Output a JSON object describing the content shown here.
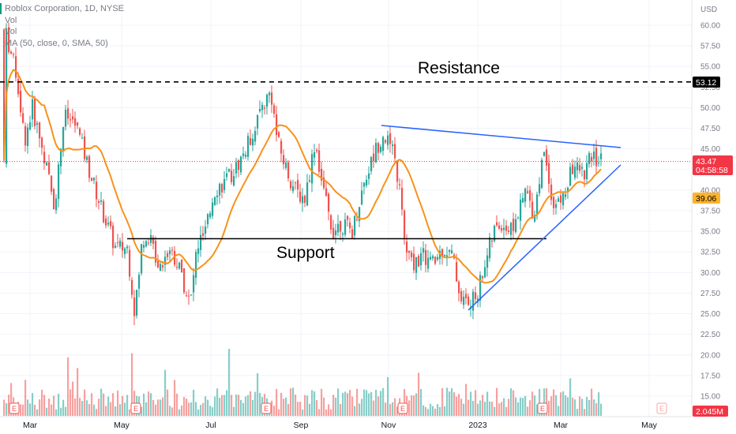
{
  "legend": {
    "title": "Roblox Corporation, 1D, NYSE",
    "vol1": "Vol",
    "vol2": "Vol",
    "ma": "MA (50, close, 0, SMA, 50)"
  },
  "colors": {
    "up": "#26a69a",
    "down": "#ef5350",
    "ma": "#f7931a",
    "trendline": "#2962ff",
    "level": "#000000",
    "price_tag": "#f23645",
    "ma_tag": "#ffb22b",
    "grid": "#f0f3fa"
  },
  "annotations": {
    "resistance": "Resistance",
    "support": "Support"
  },
  "chart_data": {
    "type": "candlestick",
    "currency": "USD",
    "y_ticks": [
      "60.00",
      "57.50",
      "55.00",
      "52.50",
      "50.00",
      "47.50",
      "45.00",
      "42.50",
      "40.00",
      "37.50",
      "35.00",
      "32.50",
      "30.00",
      "27.50",
      "25.00",
      "22.50",
      "20.00",
      "17.50",
      "15.00"
    ],
    "x_ticks": [
      "Mar",
      "May",
      "Jul",
      "Sep",
      "Nov",
      "2023",
      "Mar",
      "May"
    ],
    "price_labels": {
      "resistance_level": "53.12",
      "last_price": "43.47",
      "countdown": "04:58:58",
      "ma_value": "39.06",
      "volume": "2.045M"
    },
    "levels": {
      "resistance": 53.12,
      "support": 34.1
    },
    "ma_period": 50,
    "earnings_markers": 6,
    "future_earnings_markers": 1,
    "series": [
      {
        "name": "Roblox Corporation",
        "kind": "ohlc",
        "start": "2022-02-17",
        "start_close": 59.5,
        "end_close": 43.47
      },
      {
        "name": "MA (50, close, 0, SMA, 50)",
        "kind": "line",
        "last": 39.06
      }
    ]
  },
  "earnings_label": "E"
}
